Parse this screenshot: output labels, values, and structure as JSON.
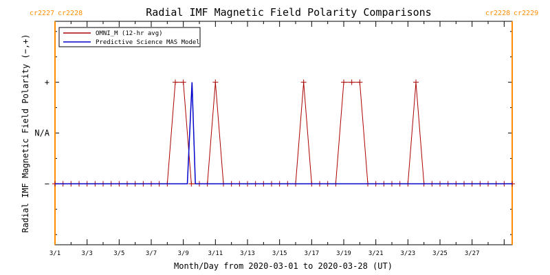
{
  "chart_data": {
    "type": "line",
    "title": "Radial IMF Magnetic Field Polarity Comparisons",
    "xlabel": "Month/Day from 2020-03-01 to 2020-03-28 (UT)",
    "ylabel": "Radial IMF Magnetic Field Polarity (−,+)",
    "x_range": [
      "2020-03-01",
      "2020-03-29 12:00"
    ],
    "y_categories": [
      "−",
      "N/A",
      "+"
    ],
    "y_levels": {
      "−": -1,
      "N/A": 0,
      "+": 1
    },
    "ylim": [
      -2.2,
      2.2
    ],
    "x_tick_labels": [
      "3/1",
      "3/3",
      "3/5",
      "3/7",
      "3/9",
      "3/11",
      "3/13",
      "3/15",
      "3/17",
      "3/19",
      "3/21",
      "3/23",
      "3/25",
      "3/27"
    ],
    "x_tick_dates": [
      "2020-03-01",
      "2020-03-03",
      "2020-03-05",
      "2020-03-07",
      "2020-03-09",
      "2020-03-11",
      "2020-03-13",
      "2020-03-15",
      "2020-03-17",
      "2020-03-19",
      "2020-03-21",
      "2020-03-23",
      "2020-03-25",
      "2020-03-27"
    ],
    "carrington_markers": [
      {
        "labels": [
          "cr2227",
          "cr2228"
        ],
        "date": "2020-03-01 00:00",
        "position": "left"
      },
      {
        "labels": [
          "cr2228",
          "cr2229"
        ],
        "date": "2020-03-29 12:00",
        "position": "right"
      }
    ],
    "series": [
      {
        "name": "OMNI_M (12-hr avg)",
        "color": "#aa0000",
        "marker": "+",
        "points": [
          [
            "2020-03-01 00:00",
            -1
          ],
          [
            "2020-03-01 12:00",
            -1
          ],
          [
            "2020-03-02 00:00",
            -1
          ],
          [
            "2020-03-02 12:00",
            -1
          ],
          [
            "2020-03-03 00:00",
            -1
          ],
          [
            "2020-03-03 12:00",
            -1
          ],
          [
            "2020-03-04 00:00",
            -1
          ],
          [
            "2020-03-04 12:00",
            -1
          ],
          [
            "2020-03-05 00:00",
            -1
          ],
          [
            "2020-03-05 12:00",
            -1
          ],
          [
            "2020-03-06 00:00",
            -1
          ],
          [
            "2020-03-06 12:00",
            -1
          ],
          [
            "2020-03-07 00:00",
            -1
          ],
          [
            "2020-03-07 12:00",
            -1
          ],
          [
            "2020-03-08 00:00",
            -1
          ],
          [
            "2020-03-08 12:00",
            1
          ],
          [
            "2020-03-09 00:00",
            1
          ],
          [
            "2020-03-09 12:00",
            -1
          ],
          [
            "2020-03-10 00:00",
            -1
          ],
          [
            "2020-03-10 12:00",
            -1
          ],
          [
            "2020-03-11 00:00",
            1
          ],
          [
            "2020-03-11 12:00",
            -1
          ],
          [
            "2020-03-12 00:00",
            -1
          ],
          [
            "2020-03-12 12:00",
            -1
          ],
          [
            "2020-03-13 00:00",
            -1
          ],
          [
            "2020-03-13 12:00",
            -1
          ],
          [
            "2020-03-14 00:00",
            -1
          ],
          [
            "2020-03-14 12:00",
            -1
          ],
          [
            "2020-03-15 00:00",
            -1
          ],
          [
            "2020-03-15 12:00",
            -1
          ],
          [
            "2020-03-16 00:00",
            -1
          ],
          [
            "2020-03-16 12:00",
            1
          ],
          [
            "2020-03-17 00:00",
            -1
          ],
          [
            "2020-03-17 12:00",
            -1
          ],
          [
            "2020-03-18 00:00",
            -1
          ],
          [
            "2020-03-18 12:00",
            -1
          ],
          [
            "2020-03-19 00:00",
            1
          ],
          [
            "2020-03-19 12:00",
            1
          ],
          [
            "2020-03-20 00:00",
            1
          ],
          [
            "2020-03-20 12:00",
            -1
          ],
          [
            "2020-03-21 00:00",
            -1
          ],
          [
            "2020-03-21 12:00",
            -1
          ],
          [
            "2020-03-22 00:00",
            -1
          ],
          [
            "2020-03-22 12:00",
            -1
          ],
          [
            "2020-03-23 00:00",
            -1
          ],
          [
            "2020-03-23 12:00",
            1
          ],
          [
            "2020-03-24 00:00",
            -1
          ],
          [
            "2020-03-24 12:00",
            -1
          ],
          [
            "2020-03-25 00:00",
            -1
          ],
          [
            "2020-03-25 12:00",
            -1
          ],
          [
            "2020-03-26 00:00",
            -1
          ],
          [
            "2020-03-26 12:00",
            -1
          ],
          [
            "2020-03-27 00:00",
            -1
          ],
          [
            "2020-03-27 12:00",
            -1
          ],
          [
            "2020-03-28 00:00",
            -1
          ],
          [
            "2020-03-28 12:00",
            -1
          ],
          [
            "2020-03-29 00:00",
            -1
          ],
          [
            "2020-03-29 12:00",
            -1
          ]
        ]
      },
      {
        "name": "Predictive Science MAS Model",
        "color": "#0000cc",
        "marker": "none",
        "points": [
          [
            "2020-03-01 00:00",
            -1
          ],
          [
            "2020-03-09 06:00",
            -1
          ],
          [
            "2020-03-09 13:00",
            1
          ],
          [
            "2020-03-09 18:00",
            -1
          ],
          [
            "2020-03-29 12:00",
            -1
          ]
        ]
      }
    ]
  }
}
